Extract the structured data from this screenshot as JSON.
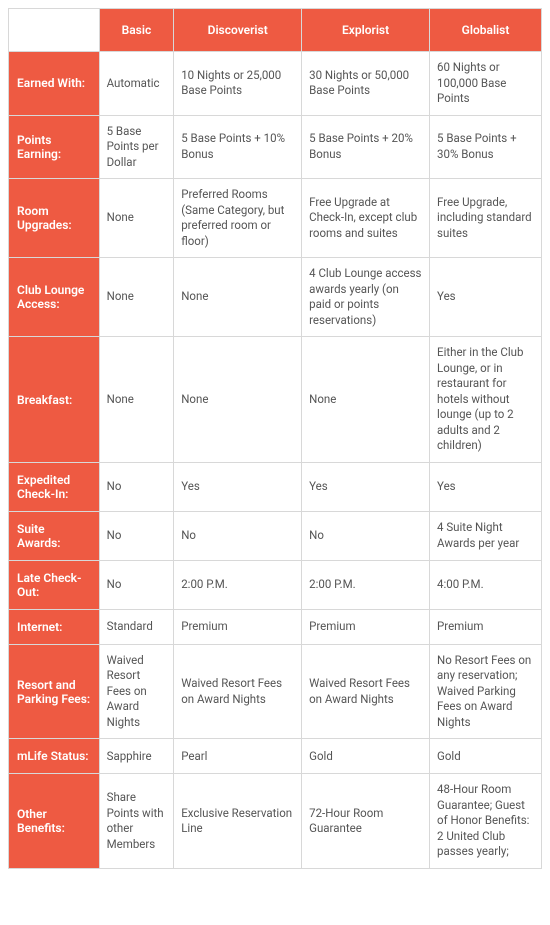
{
  "table": {
    "type": "table",
    "accent_color": "#ee5a42",
    "border_color": "#d8d8d8",
    "text_color": "#555555",
    "header_text_color": "#ffffff",
    "font_size_pt": 9,
    "columns": [
      "",
      "Basic",
      "Discoverist",
      "Explorist",
      "Globalist"
    ],
    "column_widths_pct": [
      17,
      14,
      24,
      24,
      21
    ],
    "rows": [
      {
        "label": "Earned With:",
        "cells": [
          "Automatic",
          "10 Nights or 25,000 Base Points",
          "30 Nights or 50,000 Base Points",
          "60 Nights or 100,000 Base Points"
        ]
      },
      {
        "label": "Points Earning:",
        "cells": [
          "5 Base Points per Dollar",
          "5 Base Points + 10% Bonus",
          "5 Base Points + 20% Bonus",
          "5 Base Points + 30% Bonus"
        ]
      },
      {
        "label": "Room Upgrades:",
        "cells": [
          "None",
          "Preferred Rooms (Same Category, but preferred room or floor)",
          "Free Upgrade at Check-In, except club rooms and suites",
          "Free Upgrade, including standard suites"
        ]
      },
      {
        "label": "Club Lounge Access:",
        "cells": [
          "None",
          "None",
          "4 Club Lounge access awards yearly (on paid or points reservations)",
          "Yes"
        ]
      },
      {
        "label": "Breakfast:",
        "cells": [
          "None",
          "None",
          "None",
          "Either in the Club Lounge, or in restaurant for hotels without lounge (up to 2 adults and 2 children)"
        ]
      },
      {
        "label": "Expedited Check-In:",
        "cells": [
          "No",
          "Yes",
          "Yes",
          "Yes"
        ]
      },
      {
        "label": "Suite Awards:",
        "cells": [
          "No",
          "No",
          "No",
          "4 Suite Night Awards per year"
        ]
      },
      {
        "label": "Late Check-Out:",
        "cells": [
          "No",
          "2:00 P.M.",
          "2:00 P.M.",
          "4:00 P.M."
        ]
      },
      {
        "label": "Internet:",
        "cells": [
          "Standard",
          "Premium",
          "Premium",
          "Premium"
        ]
      },
      {
        "label": "Resort and Parking Fees:",
        "cells": [
          "Waived Resort Fees on Award Nights",
          "Waived Resort Fees on Award Nights",
          "Waived Resort Fees on Award Nights",
          "No Resort Fees on any reservation; Waived Parking Fees on Award Nights"
        ]
      },
      {
        "label": "mLife Status:",
        "cells": [
          "Sapphire",
          "Pearl",
          "Gold",
          "Gold"
        ]
      },
      {
        "label": "Other Benefits:",
        "cells": [
          "Share Points with other Members",
          "Exclusive Reservation Line",
          "72-Hour Room Guarantee",
          "48-Hour Room Guarantee; Guest of Honor Benefits: 2 United Club passes yearly;"
        ]
      }
    ]
  }
}
